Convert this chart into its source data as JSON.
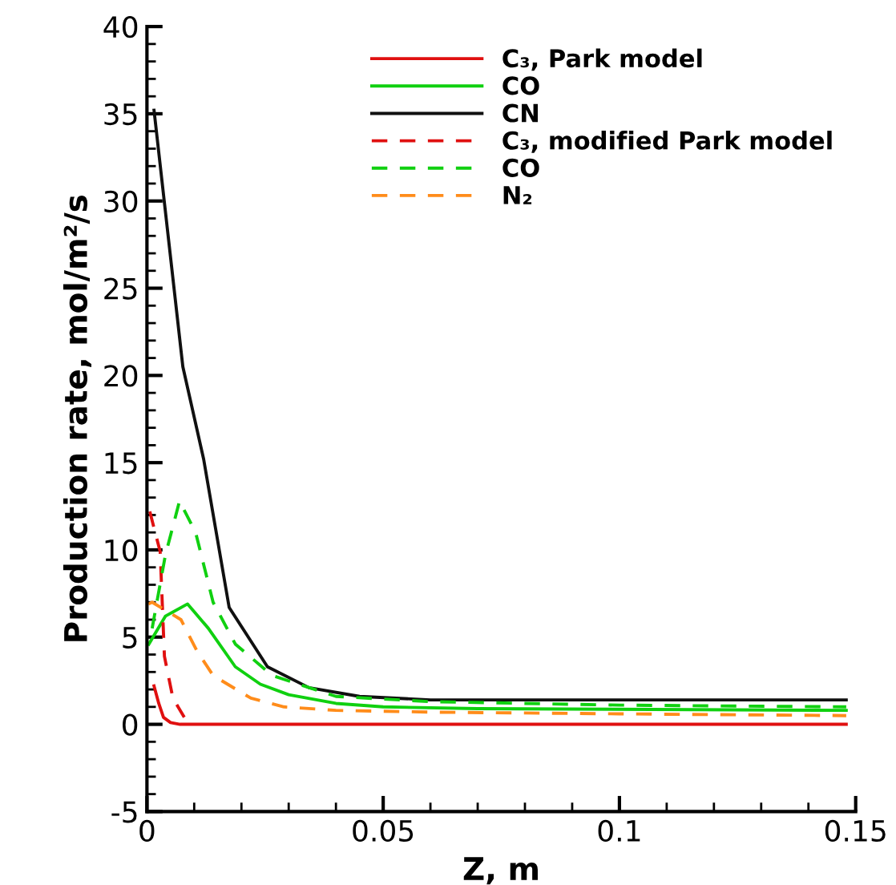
{
  "chart_data": {
    "type": "line",
    "xlabel": "Z, m",
    "ylabel": "Production rate, mol/m²/s",
    "xlim": [
      0,
      0.15
    ],
    "ylim": [
      -5,
      40
    ],
    "xticks": [
      0,
      {
        "value": 0.01,
        "label": null
      },
      {
        "value": 0.02,
        "label": null
      },
      {
        "value": 0.03,
        "label": null
      },
      {
        "value": 0.04,
        "label": null
      },
      0.05,
      {
        "value": 0.06,
        "label": null
      },
      {
        "value": 0.07,
        "label": null
      },
      {
        "value": 0.08,
        "label": null
      },
      {
        "value": 0.09,
        "label": null
      },
      0.1,
      {
        "value": 0.11,
        "label": null
      },
      {
        "value": 0.12,
        "label": null
      },
      {
        "value": 0.13,
        "label": null
      },
      {
        "value": 0.14,
        "label": null
      },
      0.15
    ],
    "yticks": [
      -5,
      {
        "value": -4,
        "label": null
      },
      {
        "value": -3,
        "label": null
      },
      {
        "value": -2,
        "label": null
      },
      {
        "value": -1,
        "label": null
      },
      0,
      {
        "value": 1,
        "label": null
      },
      {
        "value": 2,
        "label": null
      },
      {
        "value": 3,
        "label": null
      },
      {
        "value": 4,
        "label": null
      },
      5,
      {
        "value": 6,
        "label": null
      },
      {
        "value": 7,
        "label": null
      },
      {
        "value": 8,
        "label": null
      },
      {
        "value": 9,
        "label": null
      },
      10,
      {
        "value": 11,
        "label": null
      },
      {
        "value": 12,
        "label": null
      },
      {
        "value": 13,
        "label": null
      },
      {
        "value": 14,
        "label": null
      },
      15,
      {
        "value": 16,
        "label": null
      },
      {
        "value": 17,
        "label": null
      },
      {
        "value": 18,
        "label": null
      },
      {
        "value": 19,
        "label": null
      },
      20,
      {
        "value": 21,
        "label": null
      },
      {
        "value": 22,
        "label": null
      },
      {
        "value": 23,
        "label": null
      },
      {
        "value": 24,
        "label": null
      },
      25,
      {
        "value": 26,
        "label": null
      },
      {
        "value": 27,
        "label": null
      },
      {
        "value": 28,
        "label": null
      },
      {
        "value": 29,
        "label": null
      },
      30,
      {
        "value": 31,
        "label": null
      },
      {
        "value": 32,
        "label": null
      },
      {
        "value": 33,
        "label": null
      },
      {
        "value": 34,
        "label": null
      },
      35,
      {
        "value": 36,
        "label": null
      },
      {
        "value": 37,
        "label": null
      },
      {
        "value": 38,
        "label": null
      },
      {
        "value": 39,
        "label": null
      },
      40
    ],
    "grid": false,
    "legend": "top right",
    "marker": "none",
    "series": [
      {
        "name": "C₃, Park model",
        "color": "#e01010",
        "line_style": "solid",
        "x": [
          0.0015,
          0.0025,
          0.0035,
          0.005,
          0.007,
          0.148
        ],
        "values": [
          2.2,
          1.2,
          0.4,
          0.1,
          0,
          0
        ]
      },
      {
        "name": "CO",
        "color": "#10d010",
        "line_style": "solid",
        "x": [
          0.0004,
          0.0039,
          0.0086,
          0.013,
          0.0187,
          0.024,
          0.03,
          0.04,
          0.05,
          0.07,
          0.148
        ],
        "values": [
          4.6,
          6.2,
          6.9,
          5.5,
          3.3,
          2.3,
          1.7,
          1.2,
          1.0,
          0.9,
          0.8
        ]
      },
      {
        "name": "CN",
        "color": "#101010",
        "line_style": "solid",
        "x": [
          0.0015,
          0.0076,
          0.012,
          0.0174,
          0.0255,
          0.0343,
          0.045,
          0.06,
          0.148
        ],
        "values": [
          35.2,
          20.5,
          15.2,
          6.7,
          3.3,
          2.1,
          1.6,
          1.4,
          1.4
        ]
      },
      {
        "name": "C₃, modified Park model",
        "color": "#e01010",
        "line_style": "dashed",
        "x": [
          0.0006,
          0.0028,
          0.0037,
          0.0055,
          0.0079
        ],
        "values": [
          12.2,
          9.9,
          3.9,
          1.5,
          0.4
        ]
      },
      {
        "name": "CO",
        "color": "#10d010",
        "line_style": "dashed",
        "x": [
          0.0011,
          0.0039,
          0.0069,
          0.0103,
          0.014,
          0.0187,
          0.0265,
          0.04,
          0.06,
          0.08,
          0.1,
          0.148
        ],
        "values": [
          5.5,
          9.7,
          12.8,
          11.0,
          7.0,
          4.6,
          2.8,
          1.6,
          1.3,
          1.2,
          1.1,
          1.0
        ]
      },
      {
        "name": "N₂",
        "color": "#ff8c1a",
        "line_style": "dashed",
        "x": [
          0.0003,
          0.0011,
          0.0072,
          0.0106,
          0.014,
          0.022,
          0.029,
          0.04,
          0.06,
          0.1,
          0.148
        ],
        "values": [
          6.9,
          7.0,
          6.0,
          4.2,
          2.8,
          1.5,
          1.0,
          0.8,
          0.7,
          0.6,
          0.5
        ]
      }
    ]
  }
}
